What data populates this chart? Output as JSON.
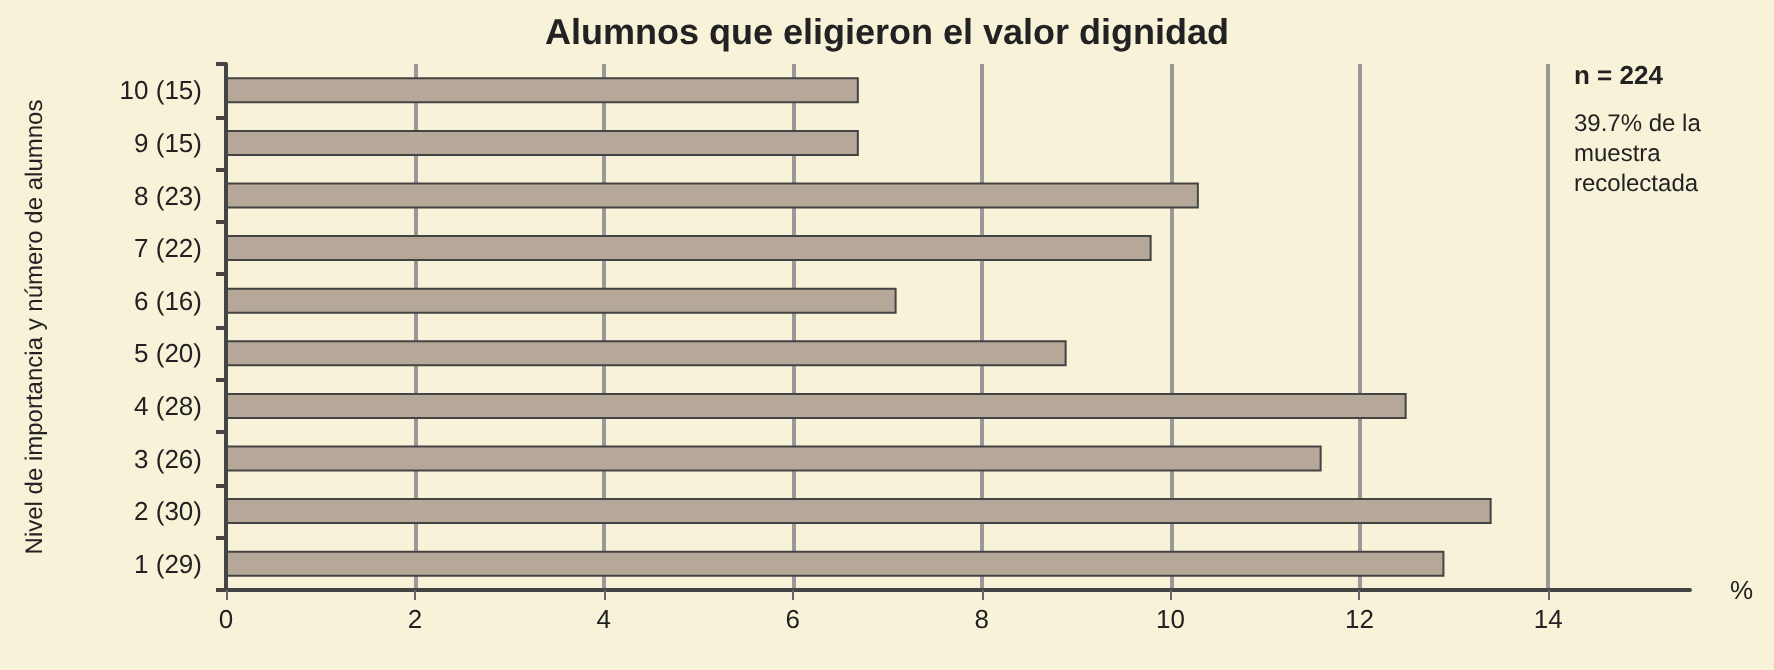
{
  "chart_data": {
    "type": "bar",
    "orientation": "horizontal",
    "title": "Alumnos que eligieron el valor dignidad",
    "xlabel": "%",
    "ylabel": "Nivel de importancia y número de alumnos",
    "categories": [
      "10 (15)",
      "9 (15)",
      "8 (23)",
      "7 (22)",
      "6 (16)",
      "5 (20)",
      "4 (28)",
      "3 (26)",
      "2 (30)",
      "1 (29)"
    ],
    "values": [
      6.7,
      6.7,
      10.3,
      9.8,
      7.1,
      8.9,
      12.5,
      11.6,
      13.4,
      12.9
    ],
    "color": "#b5a898",
    "xlim": [
      0,
      15.5
    ],
    "xticks": [
      0,
      2,
      4,
      6,
      8,
      10,
      12,
      14
    ],
    "grid": "x",
    "annotations": [
      "n = 224",
      "39.7% de la muestra recolectada"
    ]
  }
}
